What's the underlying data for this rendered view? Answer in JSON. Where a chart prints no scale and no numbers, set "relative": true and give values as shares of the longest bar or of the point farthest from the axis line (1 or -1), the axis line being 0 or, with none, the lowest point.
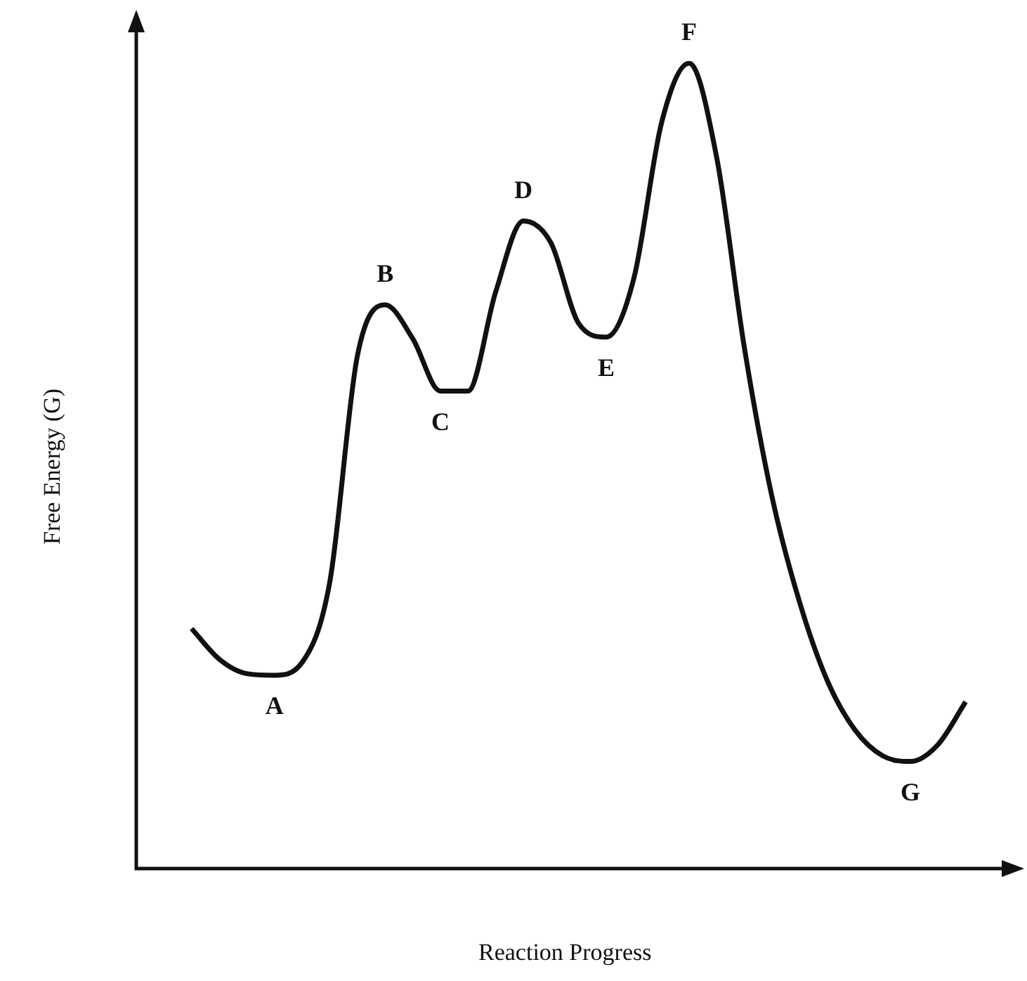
{
  "chart_data": {
    "type": "line",
    "relative": true,
    "xlabel": "Reaction Progress",
    "ylabel": "Free Energy (G)",
    "color": "#111111",
    "marker": "none",
    "legend": false,
    "categories": [
      null,
      null,
      null,
      null,
      null,
      null,
      null,
      null,
      null,
      null,
      null,
      null,
      null,
      null,
      null,
      null,
      null,
      null,
      null,
      null,
      null,
      null,
      null,
      null,
      null,
      null,
      null,
      null,
      null,
      null,
      null,
      null
    ],
    "values": [
      null,
      null,
      0.298,
      0.26,
      0.242,
      0.24,
      0.256,
      0.356,
      0.637,
      0.7,
      0.658,
      0.593,
      0.593,
      0.716,
      0.804,
      0.777,
      0.677,
      0.66,
      0.733,
      0.926,
      1,
      0.882,
      0.646,
      0.461,
      0.33,
      0.233,
      0.172,
      0.14,
      0.133,
      0.154,
      0.207,
      null
    ],
    "annotations": [
      {
        "text": "A",
        "y": 0.24
      },
      {
        "text": "B",
        "y": 0.7
      },
      {
        "text": "C",
        "y": 0.593
      },
      {
        "text": "D",
        "y": 0.804
      },
      {
        "text": "E",
        "y": 0.66
      },
      {
        "text": "F",
        "y": 1
      },
      {
        "text": "G",
        "y": 0.133
      }
    ]
  }
}
